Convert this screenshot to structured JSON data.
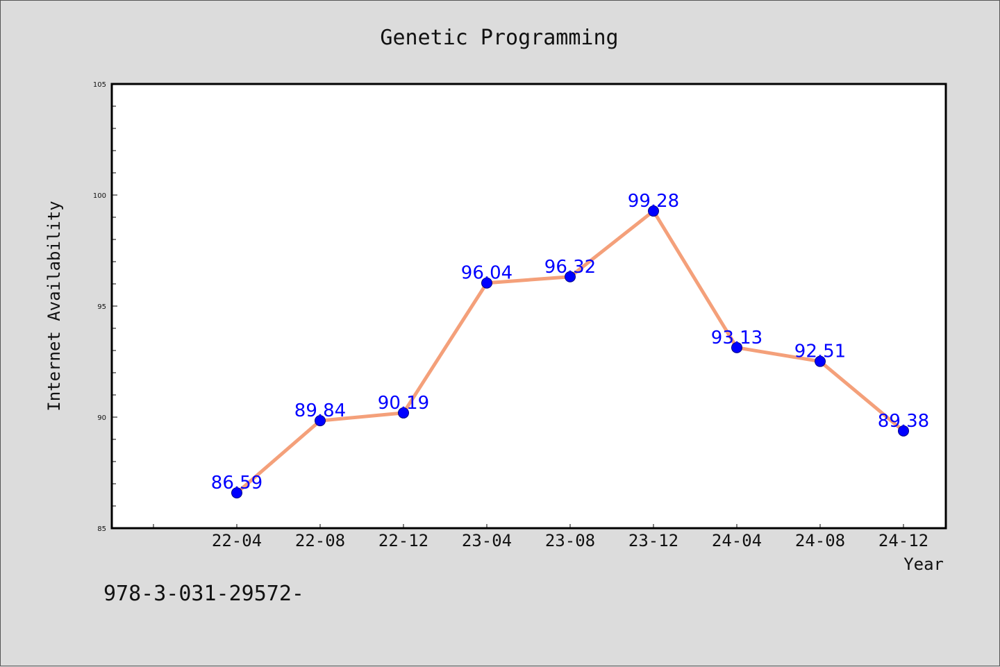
{
  "chart_data": {
    "type": "line",
    "title": "Genetic Programming",
    "xlabel": "Year",
    "ylabel": "Internet Availability",
    "categories": [
      "22-04",
      "22-08",
      "22-12",
      "23-04",
      "23-08",
      "23-12",
      "24-04",
      "24-08",
      "24-12"
    ],
    "series": [
      {
        "values": [
          86.59,
          89.84,
          90.19,
          96.04,
          96.32,
          99.28,
          93.13,
          92.51,
          89.38
        ],
        "labels": [
          "86.59",
          "89.84",
          "90.19",
          "96.04",
          "96.32",
          "99.28",
          "93.13",
          "92.51",
          "89.38"
        ]
      }
    ],
    "ylim": [
      85,
      105
    ],
    "yticks": [
      "85",
      "90",
      "95",
      "100",
      "105"
    ],
    "grid": false,
    "line_color": "#f4a07a",
    "marker_color": "#0000ff",
    "label_color": "#0000ff"
  },
  "footnote": "978-3-031-29572-"
}
